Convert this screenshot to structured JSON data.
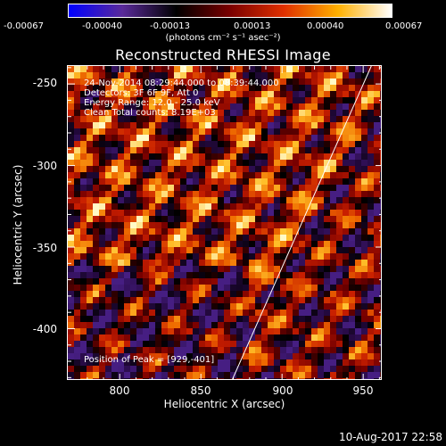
{
  "colorbar": {
    "ticks": [
      "-0.00067",
      "-0.00040",
      "-0.00013",
      "0.00013",
      "0.00040",
      "0.00067"
    ],
    "units": "(photons cm⁻² s⁻¹ asec⁻²)",
    "colors": [
      "#0000ff",
      "#5a2a9a",
      "#000000",
      "#7a0000",
      "#e03000",
      "#ffb000",
      "#ffffff"
    ]
  },
  "title": "Reconstructed RHESSI Image",
  "info": {
    "time": "24-Nov-2014 08:29:44.000 to 08:39:44.000",
    "detectors": "Detectors: 3F 6F 9F, Att 0",
    "energy": "Energy Range: 12.0 - 25.0 keV",
    "clean": "Clean     Total counts: 8.19E+03",
    "peak": "Position of Peak = [929,-401]"
  },
  "axes": {
    "xlabel": "Heliocentric X (arcsec)",
    "ylabel": "Heliocentric Y (arcsec)",
    "xticks": [
      "800",
      "850",
      "900",
      "950"
    ],
    "yticks": [
      "-250",
      "-300",
      "-350",
      "-400"
    ],
    "xlim": [
      768,
      962
    ],
    "ylim": [
      -432,
      -239
    ]
  },
  "limb_line": {
    "x": [
      869,
      955
    ],
    "y": [
      -432,
      -239
    ]
  },
  "footer": {
    "date": "10-Aug-2017 22:58"
  }
}
